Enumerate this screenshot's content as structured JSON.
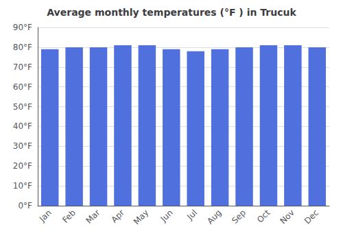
{
  "chart_data": {
    "type": "bar",
    "title": "Average monthly temperatures (°F ) in Trucuk",
    "categories": [
      "Jan",
      "Feb",
      "Mar",
      "Apr",
      "May",
      "Jun",
      "Jul",
      "Aug",
      "Sep",
      "Oct",
      "Nov",
      "Dec"
    ],
    "values": [
      79,
      80,
      80,
      81,
      81,
      79,
      78,
      79,
      80,
      81,
      81,
      80
    ],
    "ylim": [
      0,
      90
    ],
    "yticks": [
      {
        "value": 0,
        "label": "0°F"
      },
      {
        "value": 10,
        "label": "10°F"
      },
      {
        "value": 20,
        "label": "20°F"
      },
      {
        "value": 30,
        "label": "30°F"
      },
      {
        "value": 40,
        "label": "40°F"
      },
      {
        "value": 50,
        "label": "50°F"
      },
      {
        "value": 60,
        "label": "60°F"
      },
      {
        "value": 70,
        "label": "70°F"
      },
      {
        "value": 80,
        "label": "80°F"
      },
      {
        "value": 90,
        "label": "90°F"
      }
    ],
    "grid": true
  }
}
